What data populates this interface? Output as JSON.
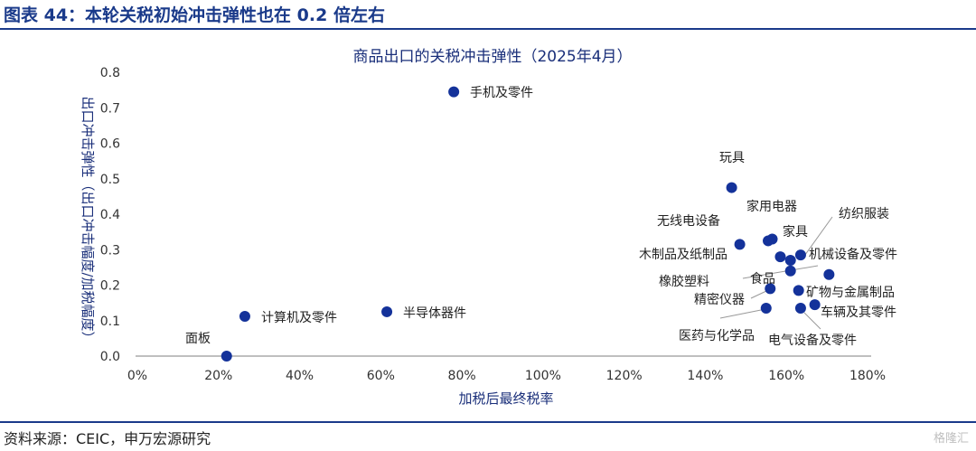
{
  "figure_title": "图表 44：本轮关税初始冲击弹性也在 0.2 倍左右",
  "source": "资料来源：CEIC，申万宏源研究",
  "watermark": "格隆汇",
  "colors": {
    "marker": "#14329a",
    "accent": "#1a3a8a",
    "leader": "#999999"
  },
  "chart_data": {
    "type": "scatter",
    "title": "商品出口的关税冲击弹性（2025年4月）",
    "xlabel": "加税后最终税率",
    "ylabel": "出口冲击弹性（出口冲击幅度/加税幅度）",
    "xlim": [
      0,
      1.8
    ],
    "ylim": [
      0,
      0.8
    ],
    "xticks": [
      0,
      0.2,
      0.4,
      0.6,
      0.8,
      1.0,
      1.2,
      1.4,
      1.6,
      1.8
    ],
    "xtick_labels": [
      "0%",
      "20%",
      "40%",
      "60%",
      "80%",
      "100%",
      "120%",
      "140%",
      "160%",
      "180%"
    ],
    "yticks": [
      0.0,
      0.1,
      0.2,
      0.3,
      0.4,
      0.5,
      0.6,
      0.7,
      0.8
    ],
    "ytick_labels": [
      "0.0",
      "0.1",
      "0.2",
      "0.3",
      "0.4",
      "0.5",
      "0.6",
      "0.7",
      "0.8"
    ],
    "points": [
      {
        "name": "手机及零件",
        "x": 0.78,
        "y": 0.745
      },
      {
        "name": "玩具",
        "x": 1.465,
        "y": 0.475
      },
      {
        "name": "家用电器",
        "x": 1.565,
        "y": 0.33
      },
      {
        "name": "家具",
        "x": 1.555,
        "y": 0.325
      },
      {
        "name": "无线电设备",
        "x": 1.485,
        "y": 0.315
      },
      {
        "name": "纺织服装",
        "x": 1.635,
        "y": 0.285
      },
      {
        "name": "木制品及纸制品",
        "x": 1.585,
        "y": 0.28
      },
      {
        "name": "机械设备及零件",
        "x": 1.61,
        "y": 0.27
      },
      {
        "name": "食品",
        "x": 1.61,
        "y": 0.24
      },
      {
        "name": "橡胶塑料",
        "x": 1.705,
        "y": 0.23
      },
      {
        "name": "精密仪器",
        "x": 1.56,
        "y": 0.19
      },
      {
        "name": "矿物与金属制品",
        "x": 1.63,
        "y": 0.185
      },
      {
        "name": "车辆及其零件",
        "x": 1.67,
        "y": 0.145
      },
      {
        "name": "医药与化学品",
        "x": 1.55,
        "y": 0.135
      },
      {
        "name": "电气设备及零件",
        "x": 1.635,
        "y": 0.135
      },
      {
        "name": "计算机及零件",
        "x": 0.265,
        "y": 0.112
      },
      {
        "name": "半导体器件",
        "x": 0.615,
        "y": 0.125
      },
      {
        "name": "面板",
        "x": 0.22,
        "y": 0.0
      }
    ]
  }
}
